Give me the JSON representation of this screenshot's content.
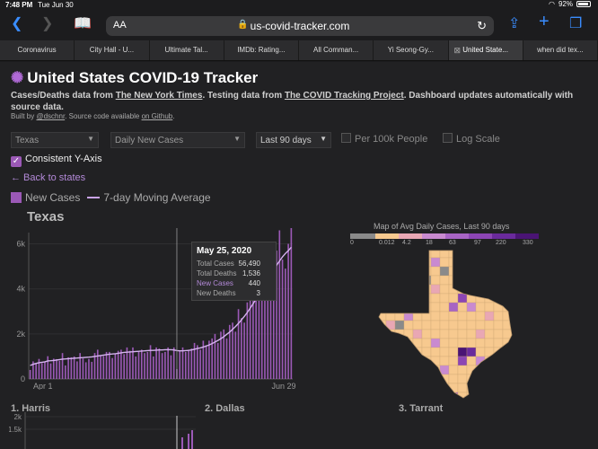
{
  "status": {
    "time": "7:48 PM",
    "date": "Tue Jun 30",
    "battery": "92%"
  },
  "browser": {
    "text_size_label": "AA",
    "url": "us-covid-tracker.com",
    "tabs": [
      "Coronavirus",
      "City Hall - U...",
      "Ultimate Tal...",
      "IMDb: Rating...",
      "All Comman...",
      "Yi Seong-Gy...",
      "United State...",
      "when did tex..."
    ],
    "active_tab": 6
  },
  "page": {
    "title": "United States COVID-19 Tracker",
    "subtitle_prefix": "Cases/Deaths data from ",
    "subtitle_link1": "The New York Times",
    "subtitle_mid": ". Testing data from ",
    "subtitle_link2": "The COVID Tracking Project",
    "subtitle_suffix": ". Dashboard updates automatically with source data.",
    "credits_prefix": "Built by ",
    "credits_author": "@dschnr",
    "credits_mid": ". Source code available ",
    "credits_link": "on Github",
    "credits_suffix": "."
  },
  "controls": {
    "state_select": "Texas",
    "metric_select": "Daily New Cases",
    "range_select": "Last 90 days",
    "per100k_label": "Per 100k People",
    "logscale_label": "Log Scale",
    "consistent_label": "Consistent Y-Axis",
    "back_link": "← Back to states"
  },
  "legend": {
    "bars_label": "New Cases",
    "line_label": "7-day Moving Average"
  },
  "chart_data": [
    {
      "type": "bar",
      "title": "Texas",
      "xlabel": "",
      "ylabel": "",
      "x_ticks": [
        "Apr 1",
        "Jun 29"
      ],
      "y_ticks": [
        "0",
        "2k",
        "4k",
        "6k"
      ],
      "ylim": [
        0,
        6500
      ],
      "series": [
        {
          "name": "New Cases",
          "values": [
            400,
            780,
            680,
            890,
            700,
            760,
            1010,
            690,
            900,
            880,
            810,
            1150,
            600,
            960,
            960,
            1000,
            780,
            1150,
            910,
            740,
            890,
            760,
            1150,
            1300,
            1050,
            1020,
            1200,
            1200,
            930,
            1100,
            1250,
            1300,
            1100,
            1400,
            1250,
            1400,
            1000,
            1250,
            1300,
            1150,
            1200,
            1500,
            1000,
            1400,
            1350,
            1150,
            1200,
            1400,
            1050,
            1400,
            440,
            1250,
            1400,
            1200,
            1300,
            1350,
            1600,
            1500,
            1300,
            1700,
            1500,
            1700,
            1800,
            2000,
            1600,
            2100,
            2200,
            1800,
            2400,
            2500,
            2100,
            3100,
            2700,
            2500,
            3400,
            3600,
            4500,
            4300,
            3700,
            4700,
            5500,
            5800,
            5000,
            4500,
            5700,
            6600,
            5300,
            4900,
            6000,
            6700
          ]
        },
        {
          "name": "7-day Moving Average",
          "values": [
            600,
            650,
            690,
            720,
            740,
            760,
            800,
            810,
            820,
            840,
            860,
            880,
            890,
            900,
            910,
            920,
            930,
            940,
            950,
            960,
            970,
            980,
            1000,
            1020,
            1040,
            1060,
            1080,
            1100,
            1110,
            1120,
            1140,
            1160,
            1180,
            1190,
            1200,
            1210,
            1220,
            1230,
            1240,
            1250,
            1260,
            1270,
            1270,
            1280,
            1290,
            1290,
            1300,
            1300,
            1300,
            1290,
            1260,
            1250,
            1250,
            1260,
            1270,
            1290,
            1320,
            1350,
            1380,
            1420,
            1460,
            1510,
            1570,
            1640,
            1710,
            1790,
            1880,
            1980,
            2080,
            2200,
            2330,
            2470,
            2620,
            2780,
            2950,
            3140,
            3340,
            3550,
            3760,
            3980,
            4200,
            4420,
            4640,
            4850,
            5050,
            5240,
            5420,
            5570,
            5700,
            5850
          ]
        }
      ]
    },
    {
      "type": "bar",
      "title": "1. Harris",
      "y_ticks": [
        "1.5k",
        "2k"
      ],
      "ylim": [
        1000,
        2100
      ]
    },
    {
      "type": "bar",
      "title": "2. Dallas"
    },
    {
      "type": "bar",
      "title": "3. Tarrant"
    }
  ],
  "tooltip": {
    "date": "May 25, 2020",
    "rows": [
      {
        "label": "Total Cases",
        "value": "56,490"
      },
      {
        "label": "Total Deaths",
        "value": "1,536"
      },
      {
        "label": "New Cases",
        "value": "440"
      },
      {
        "label": "New Deaths",
        "value": "3"
      }
    ]
  },
  "map": {
    "title": "Map of Avg Daily Cases, Last 90 days",
    "scale_labels": [
      "0",
      "0.012",
      "4.2",
      "18",
      "63",
      "97",
      "220",
      "330"
    ],
    "scale_colors": [
      "#8a8a8a",
      "#f7c98f",
      "#e9a7b4",
      "#c98ad0",
      "#a864c4",
      "#8c45b4",
      "#6a2a9c",
      "#4a1474"
    ]
  },
  "counties": {
    "harris": "1. Harris",
    "dallas": "2. Dallas",
    "tarrant": "3. Tarrant"
  }
}
